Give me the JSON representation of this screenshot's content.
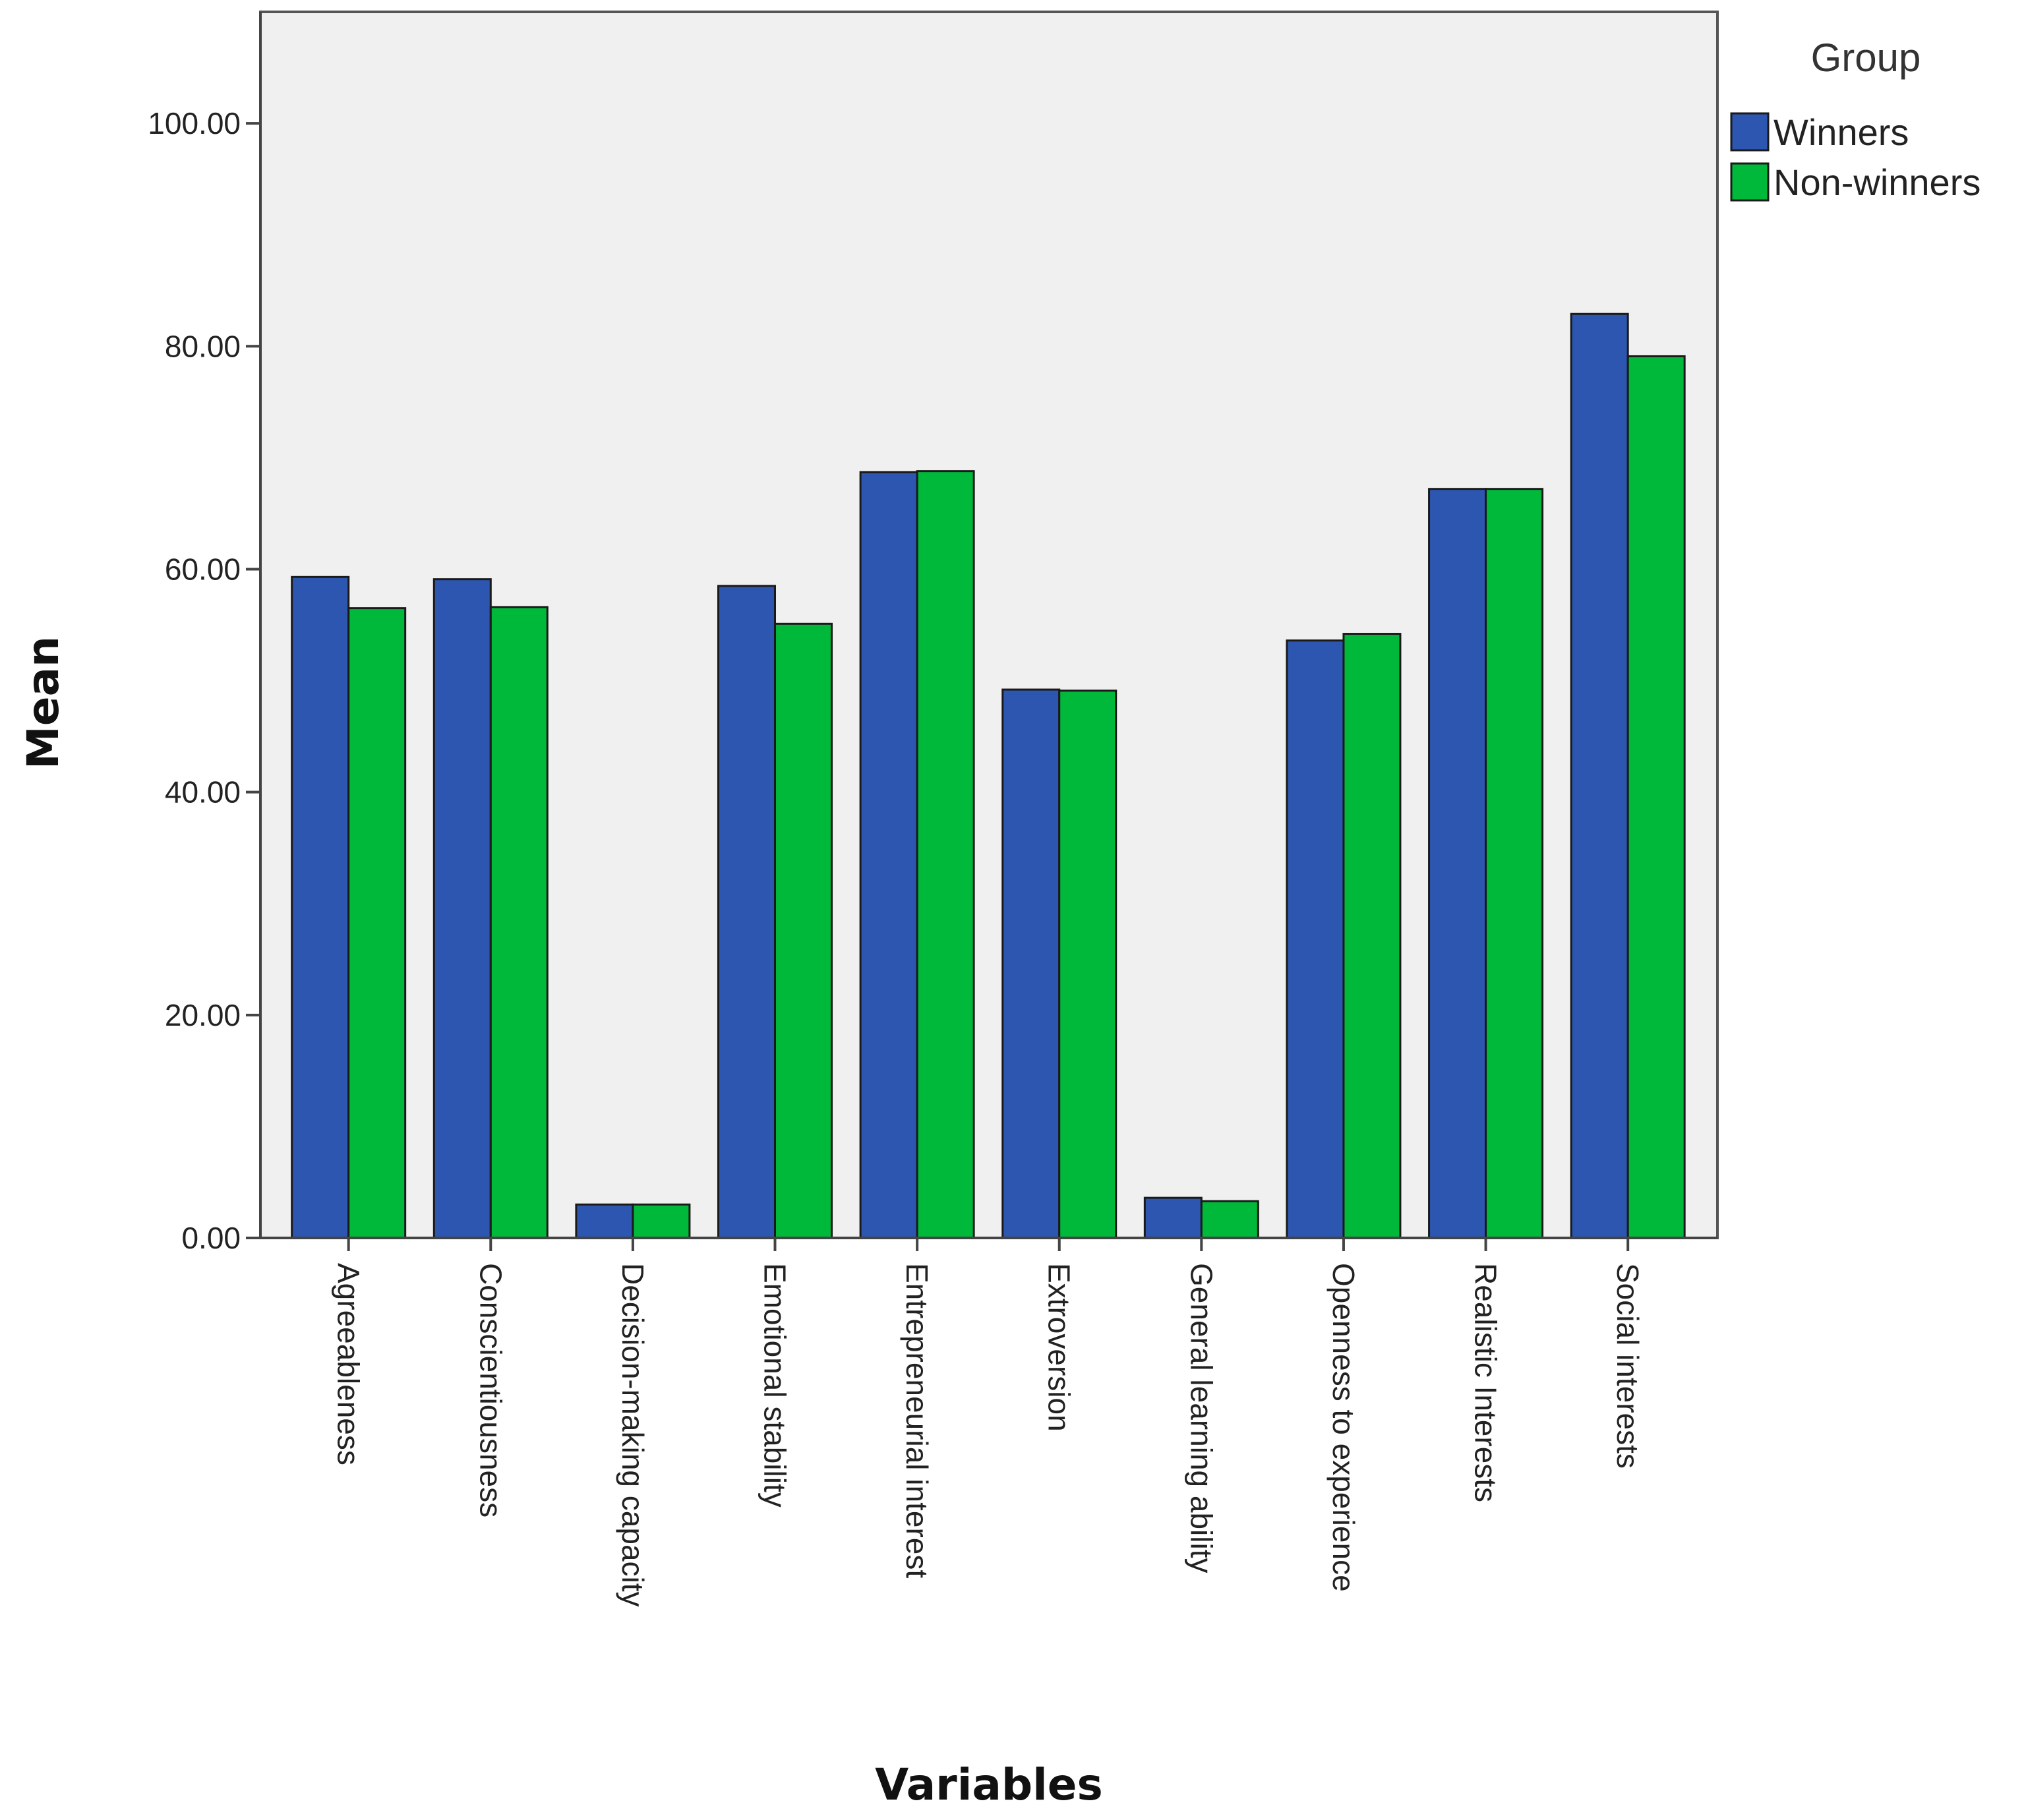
{
  "chart_data": {
    "type": "bar",
    "xlabel": "Variables",
    "ylabel": "Mean",
    "ylim": [
      0,
      110
    ],
    "yticks": [
      "0.00",
      "20.00",
      "40.00",
      "60.00",
      "80.00",
      "100.00"
    ],
    "categories": [
      "Agreeableness",
      "Conscientiousness",
      "Decision-making capacity",
      "Emotional stability",
      "Entrepreneurial interest",
      "Extroversion",
      "General learning ability",
      "Openness to experience",
      "Realistic Interests",
      "Social interests"
    ],
    "series": [
      {
        "name": "Winners",
        "color": "#2c56b0",
        "values": [
          59.3,
          59.1,
          3.0,
          58.5,
          68.7,
          49.2,
          3.6,
          53.6,
          67.2,
          82.9
        ]
      },
      {
        "name": "Non-winners",
        "color": "#00b83a",
        "values": [
          56.5,
          56.6,
          3.0,
          55.1,
          68.8,
          49.1,
          3.3,
          54.2,
          67.2,
          79.1
        ]
      }
    ],
    "legend": {
      "title": "Group",
      "position": "top-right"
    },
    "grid": false,
    "plot_background": "#f0f0f0"
  }
}
